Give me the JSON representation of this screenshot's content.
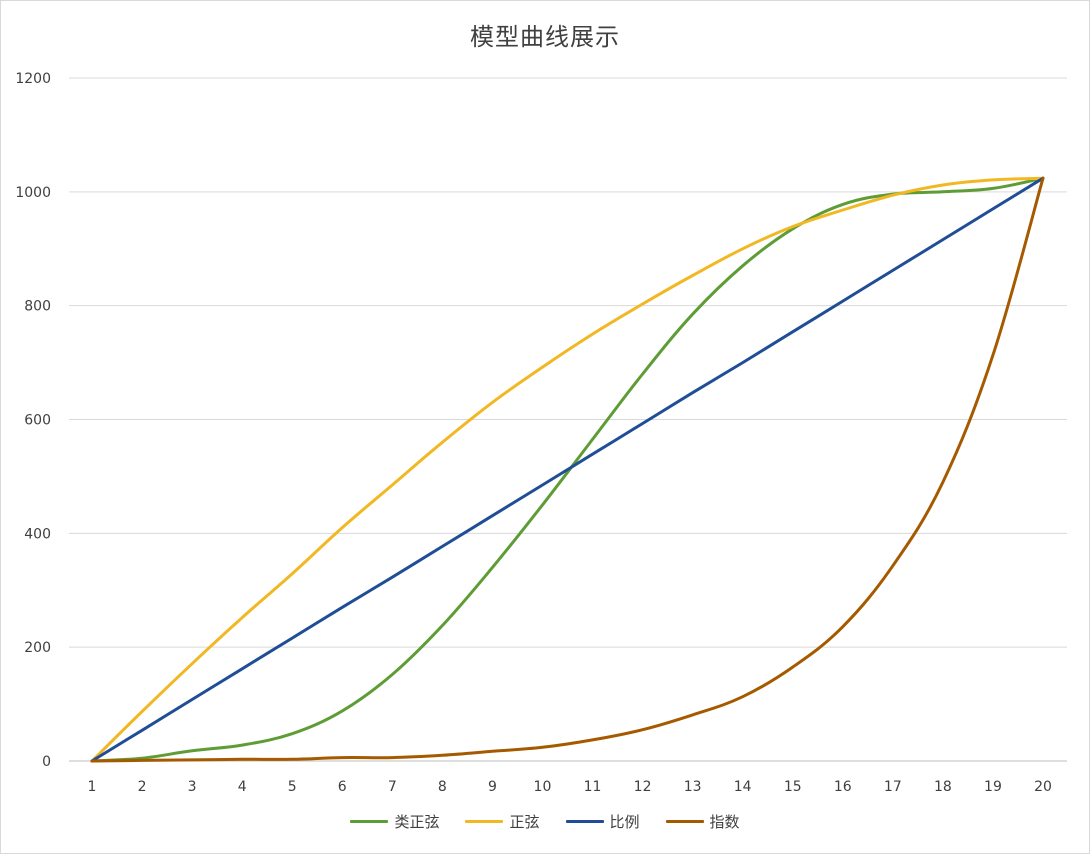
{
  "chart_data": {
    "type": "line",
    "title": "模型曲线展示",
    "xlabel": "",
    "ylabel": "",
    "categories": [
      "1",
      "2",
      "3",
      "4",
      "5",
      "6",
      "7",
      "8",
      "9",
      "10",
      "11",
      "12",
      "13",
      "14",
      "15",
      "16",
      "17",
      "18",
      "19",
      "20"
    ],
    "ylim": [
      0,
      1200
    ],
    "yticks": [
      "0",
      "200",
      "400",
      "600",
      "800",
      "1000",
      "1200"
    ],
    "grid": "horizontal",
    "legend_position": "bottom",
    "series": [
      {
        "name": "类正弦",
        "color": "#5e9c36",
        "values": [
          0,
          5,
          18,
          28,
          48,
          88,
          152,
          238,
          340,
          450,
          565,
          680,
          785,
          870,
          935,
          978,
          996,
          1000,
          1006,
          1024
        ]
      },
      {
        "name": "正弦",
        "color": "#f2b824",
        "values": [
          0,
          87,
          171,
          252,
          329,
          410,
          485,
          560,
          630,
          692,
          750,
          803,
          853,
          900,
          939,
          968,
          994,
          1012,
          1021,
          1024
        ]
      },
      {
        "name": "比例",
        "color": "#1f4e96",
        "values": [
          0,
          54,
          108,
          162,
          216,
          270,
          323,
          377,
          431,
          485,
          539,
          593,
          647,
          700,
          754,
          808,
          862,
          916,
          970,
          1024
        ]
      },
      {
        "name": "指数",
        "color": "#a55a00",
        "values": [
          0,
          1,
          2,
          3,
          3,
          6,
          6,
          10,
          17,
          24,
          37,
          55,
          81,
          113,
          165,
          236,
          343,
          490,
          713,
          1024
        ]
      }
    ]
  }
}
